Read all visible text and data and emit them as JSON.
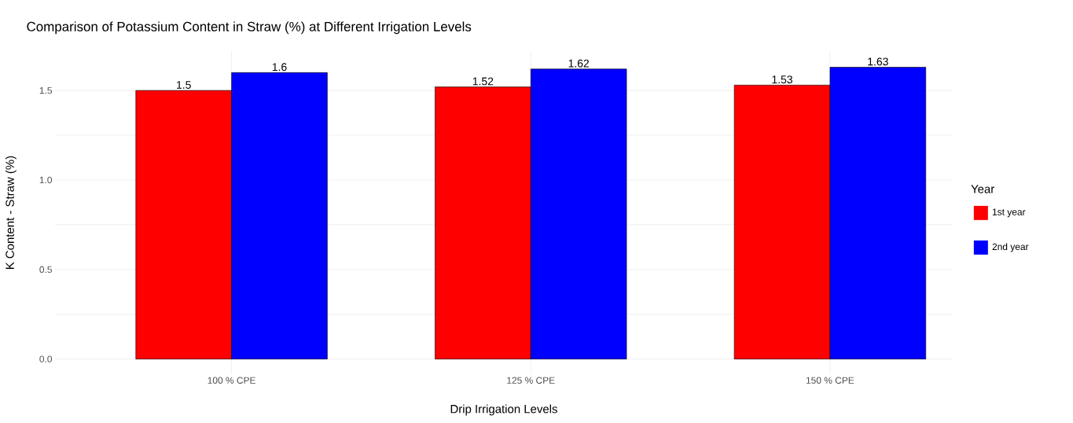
{
  "chart_data": {
    "type": "bar",
    "title": "Comparison of Potassium Content in Straw (%) at Different Irrigation Levels",
    "xlabel": "Drip Irrigation Levels",
    "ylabel": "K Content - Straw (%)",
    "legend_title": "Year",
    "categories": [
      "100 % CPE",
      "125 % CPE",
      "150 % CPE"
    ],
    "series": [
      {
        "name": "1st year",
        "color": "#ff0000",
        "values": [
          1.5,
          1.52,
          1.53
        ]
      },
      {
        "name": "2nd year",
        "color": "#0000ff",
        "values": [
          1.6,
          1.62,
          1.63
        ]
      }
    ],
    "ylim": [
      -0.085,
      1.72
    ],
    "yticks": [
      {
        "value": 0,
        "label": "0.0"
      },
      {
        "value": 0.25,
        "label": null
      },
      {
        "value": 0.5,
        "label": "0.5"
      },
      {
        "value": 0.75,
        "label": null
      },
      {
        "value": 1,
        "label": "1.0"
      },
      {
        "value": 1.25,
        "label": null
      },
      {
        "value": 1.5,
        "label": "1.5"
      }
    ],
    "grid": true,
    "legend": "right",
    "data_labels": true
  }
}
